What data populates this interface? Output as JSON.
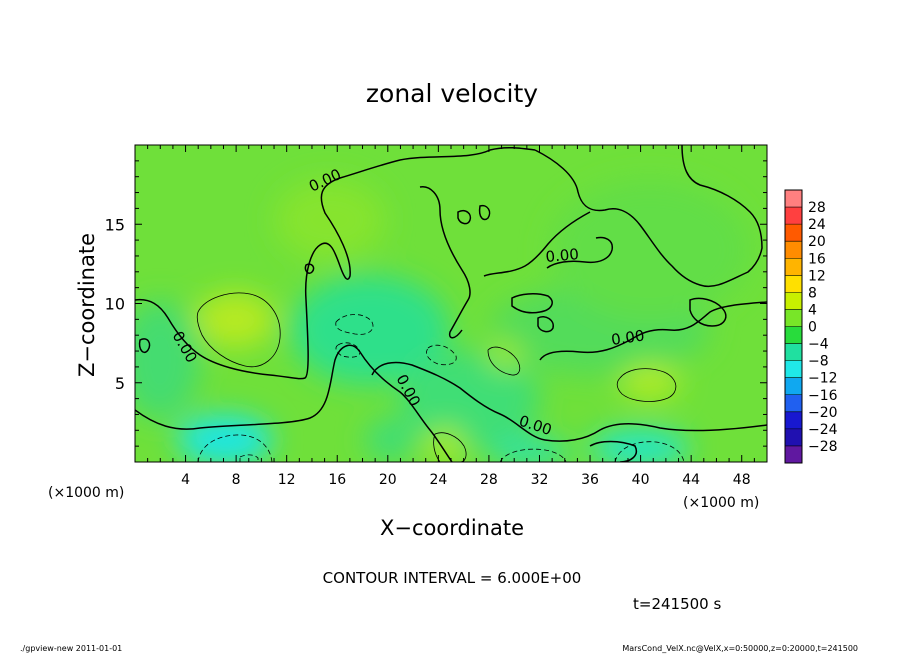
{
  "chart_data": {
    "type": "heatmap",
    "title": "zonal velocity",
    "xlabel": "X−coordinate",
    "ylabel": "Z−coordinate",
    "x_unit_label": "(×1000 m)",
    "y_unit_label": "(×1000 m)",
    "xlim": [
      0,
      50
    ],
    "ylim": [
      0,
      20
    ],
    "x_ticks": [
      4,
      8,
      12,
      16,
      20,
      24,
      28,
      32,
      36,
      40,
      44,
      48
    ],
    "y_ticks": [
      5,
      10,
      15
    ],
    "colorbar": {
      "labels": [
        28,
        24,
        20,
        16,
        12,
        8,
        4,
        0,
        -4,
        -8,
        -12,
        -16,
        -20,
        -24,
        -28
      ],
      "colors": [
        "#ff8080",
        "#ff4040",
        "#ff5a00",
        "#ff8c00",
        "#ffb400",
        "#ffe000",
        "#c8f000",
        "#78e628",
        "#28dc3c",
        "#20e0a0",
        "#20e8e8",
        "#10a8f0",
        "#2060f0",
        "#1818d0",
        "#2010b0",
        "#6018a0"
      ]
    },
    "contour_interval_text": "CONTOUR INTERVAL = 6.000E+00",
    "zero_contour_label": "0.00",
    "time_text": "t=241500 s",
    "features": [
      {
        "x": 8.5,
        "z": 8.8,
        "value": 6
      },
      {
        "x": 40.5,
        "z": 5.0,
        "value": 6
      },
      {
        "x": 29,
        "z": 6.5,
        "value": 6
      },
      {
        "x": 24,
        "z": 1.2,
        "value": 6
      },
      {
        "x": 9,
        "z": 1.0,
        "value": -6
      },
      {
        "x": 40,
        "z": 1.0,
        "value": -6
      },
      {
        "x": 17.5,
        "z": 8.0,
        "value": -6
      },
      {
        "x": 24.5,
        "z": 7.0,
        "value": -6
      }
    ]
  },
  "footer": {
    "left": "./gpview-new   2011-01-01",
    "right": "MarsCond_VelX.nc@VelX,x=0:50000,z=0:20000,t=241500"
  }
}
